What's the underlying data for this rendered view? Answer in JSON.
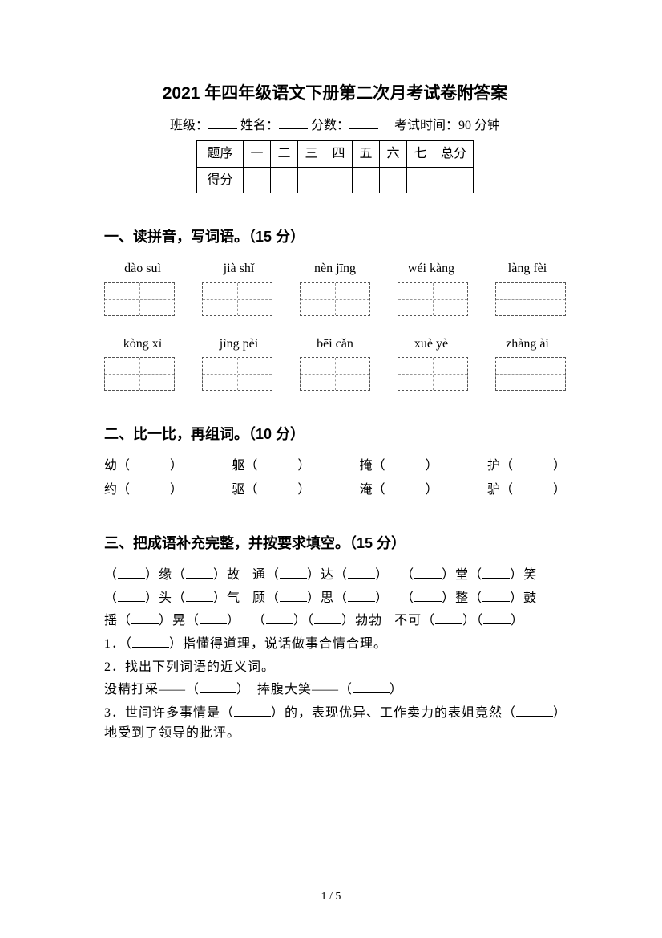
{
  "title": "2021 年四年级语文下册第二次月考试卷附答案",
  "info": {
    "class_label": "班级：",
    "name_label": "姓名：",
    "score_label": "分数：",
    "time_label": "考试时间：90 分钟"
  },
  "score_table": {
    "row_head": "题序",
    "cols": [
      "一",
      "二",
      "三",
      "四",
      "五",
      "六",
      "七"
    ],
    "total": "总分",
    "score_row": "得分"
  },
  "section1": {
    "title": "一、读拼音，写词语。（15 分）",
    "pinyin_rows": [
      [
        "dào suì",
        "jià shǐ",
        "nèn jīng",
        "wéi kàng",
        "làng fèi"
      ],
      [
        "kòng xì",
        "jìng pèi",
        "bēi cǎn",
        "xuè yè",
        "zhàng ài"
      ]
    ]
  },
  "section2": {
    "title": "二、比一比，再组词。（10 分）",
    "rows": [
      [
        "幼",
        "躯",
        "掩",
        "护"
      ],
      [
        "约",
        "驱",
        "淹",
        "驴"
      ]
    ]
  },
  "section3": {
    "title": "三、把成语补充完整，并按要求填空。（15 分）",
    "idioms_lines": [
      [
        "（____）缘（____）故",
        "通（____）达（____）",
        "（____）堂（____）笑"
      ],
      [
        "（____）头（____）气",
        "顾（____）思（____）",
        "（____）整（____）鼓"
      ],
      [
        "摇（____）晃（____）",
        "（____）（____）勃勃",
        "不可（____）（____）"
      ]
    ],
    "line1": "1．（______）指懂得道理，说话做事合情合理。",
    "line2": "2．找出下列词语的近义词。",
    "line2b": "没精打采——（_____）　捧腹大笑——（_____）",
    "line3": "3．世间许多事情是（______）的，表现优异、工作卖力的表姐竟然（______）地受到了领导的批评。"
  },
  "footer": "1 / 5"
}
